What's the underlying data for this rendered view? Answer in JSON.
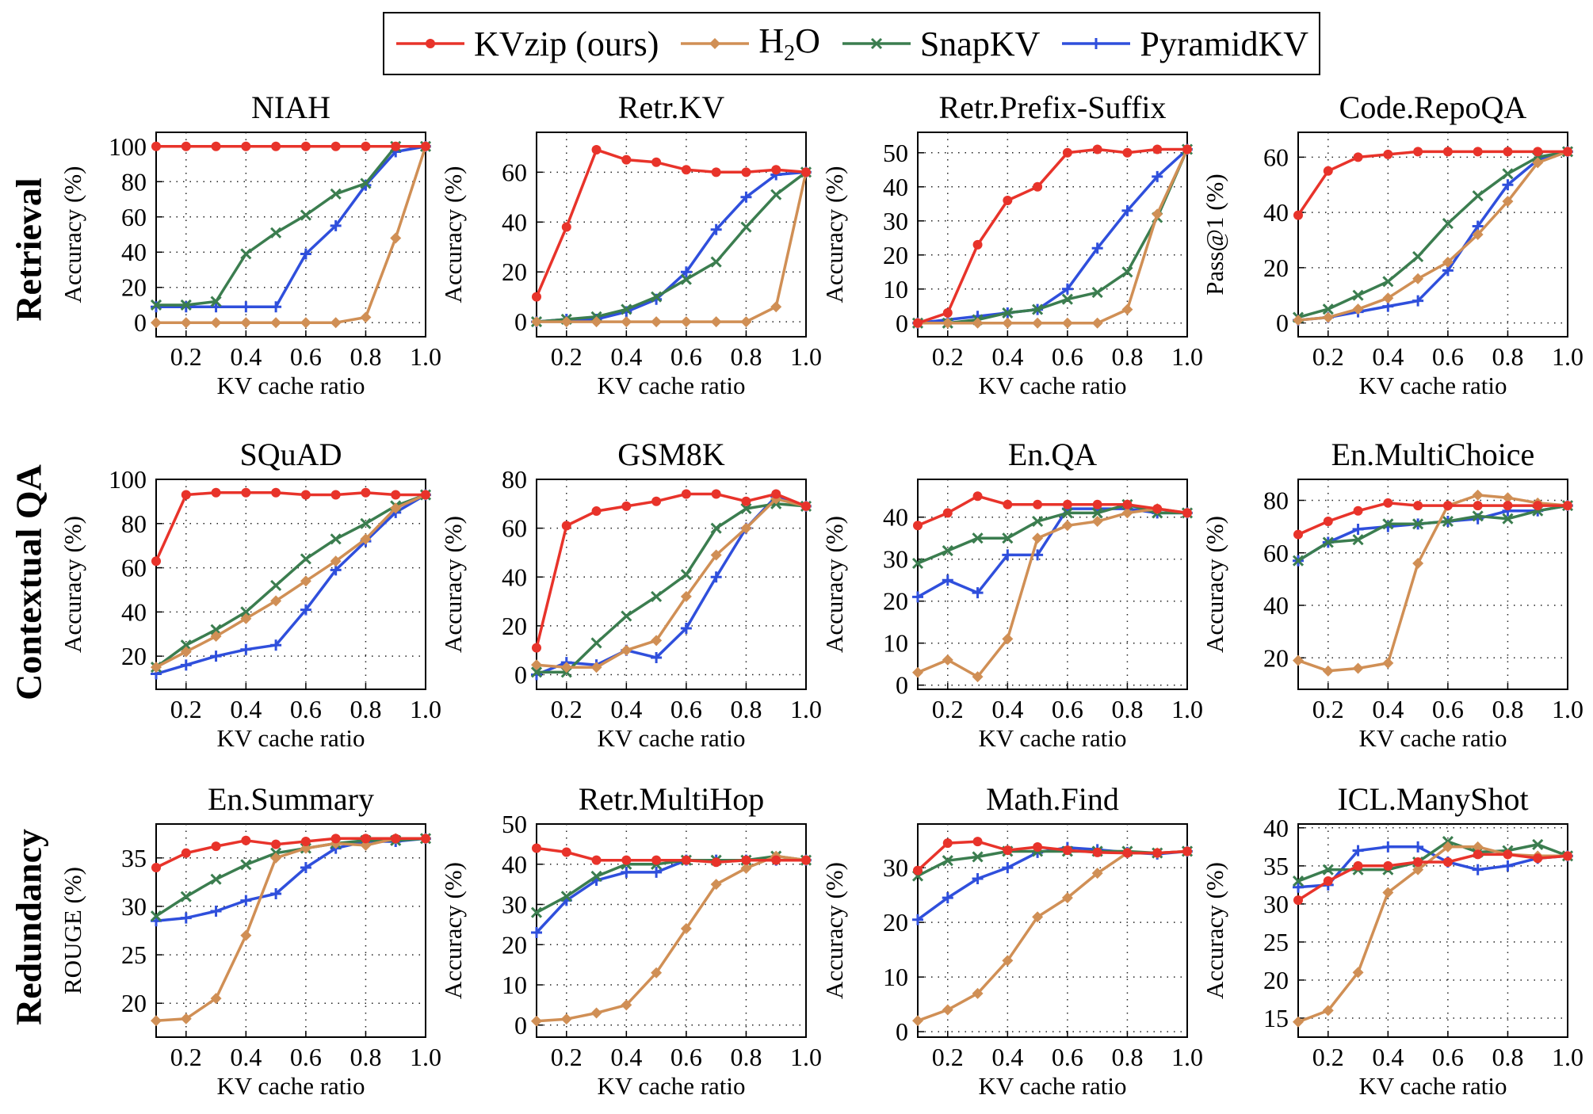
{
  "legend": [
    {
      "name": "KVzip (ours)",
      "color": "#e8332a",
      "marker": "circle"
    },
    {
      "name": "H2O",
      "color": "#d08f55",
      "marker": "diamond"
    },
    {
      "name": "SnapKV",
      "color": "#3b7d4f",
      "marker": "x"
    },
    {
      "name": "PyramidKV",
      "color": "#2f4fdc",
      "marker": "plus"
    }
  ],
  "row_labels": [
    "Retrieval",
    "Contextual QA",
    "Redundancy"
  ],
  "chart_data": [
    {
      "type": "line",
      "title": "NIAH",
      "xlabel": "KV cache ratio",
      "ylabel": "Accuracy (%)",
      "x": [
        0.1,
        0.2,
        0.3,
        0.4,
        0.5,
        0.6,
        0.7,
        0.8,
        0.9,
        1.0
      ],
      "ylim": [
        -8,
        108
      ],
      "yticks": [
        0,
        20,
        40,
        60,
        80,
        100
      ],
      "series": [
        {
          "name": "KVzip (ours)",
          "values": [
            100,
            100,
            100,
            100,
            100,
            100,
            100,
            100,
            100,
            100
          ]
        },
        {
          "name": "H2O",
          "values": [
            0,
            0,
            0,
            0,
            0,
            0,
            0,
            3,
            48,
            100
          ]
        },
        {
          "name": "SnapKV",
          "values": [
            10,
            10,
            12,
            39,
            51,
            61,
            73,
            79,
            100,
            100
          ]
        },
        {
          "name": "PyramidKV",
          "values": [
            9,
            9,
            9,
            9,
            9,
            39,
            55,
            78,
            97,
            100
          ]
        }
      ]
    },
    {
      "type": "line",
      "title": "Retr.KV",
      "xlabel": "KV cache ratio",
      "ylabel": "Accuracy (%)",
      "x": [
        0.1,
        0.2,
        0.3,
        0.4,
        0.5,
        0.6,
        0.7,
        0.8,
        0.9,
        1.0
      ],
      "ylim": [
        -6,
        76
      ],
      "yticks": [
        0,
        20,
        40,
        60
      ],
      "series": [
        {
          "name": "KVzip (ours)",
          "values": [
            10,
            38,
            69,
            65,
            64,
            61,
            60,
            60,
            61,
            60
          ]
        },
        {
          "name": "H2O",
          "values": [
            0,
            0,
            0,
            0,
            0,
            0,
            0,
            0,
            6,
            60
          ]
        },
        {
          "name": "SnapKV",
          "values": [
            0,
            1,
            2,
            5,
            10,
            17,
            24,
            38,
            51,
            60
          ]
        },
        {
          "name": "PyramidKV",
          "values": [
            0,
            1,
            1,
            4,
            9,
            20,
            37,
            50,
            59,
            60
          ]
        }
      ]
    },
    {
      "type": "line",
      "title": "Retr.Prefix-Suffix",
      "xlabel": "KV cache ratio",
      "ylabel": "Accuracy (%)",
      "x": [
        0.1,
        0.2,
        0.3,
        0.4,
        0.5,
        0.6,
        0.7,
        0.8,
        0.9,
        1.0
      ],
      "ylim": [
        -4,
        56
      ],
      "yticks": [
        0,
        10,
        20,
        30,
        40,
        50
      ],
      "series": [
        {
          "name": "KVzip (ours)",
          "values": [
            0,
            3,
            23,
            36,
            40,
            50,
            51,
            50,
            51,
            51
          ]
        },
        {
          "name": "H2O",
          "values": [
            0,
            0,
            0,
            0,
            0,
            0,
            0,
            4,
            32,
            51
          ]
        },
        {
          "name": "SnapKV",
          "values": [
            0,
            0,
            1,
            3,
            4,
            7,
            9,
            15,
            31,
            51
          ]
        },
        {
          "name": "PyramidKV",
          "values": [
            0,
            1,
            2,
            3,
            4,
            10,
            22,
            33,
            43,
            51
          ]
        }
      ]
    },
    {
      "type": "line",
      "title": "Code.RepoQA",
      "xlabel": "KV cache ratio",
      "ylabel": "Pass@1 (%)",
      "x": [
        0.1,
        0.2,
        0.3,
        0.4,
        0.5,
        0.6,
        0.7,
        0.8,
        0.9,
        1.0
      ],
      "ylim": [
        -5,
        69
      ],
      "yticks": [
        0,
        20,
        40,
        60
      ],
      "series": [
        {
          "name": "KVzip (ours)",
          "values": [
            39,
            55,
            60,
            61,
            62,
            62,
            62,
            62,
            62,
            62
          ]
        },
        {
          "name": "H2O",
          "values": [
            1,
            2,
            5,
            9,
            16,
            22,
            32,
            44,
            58,
            62
          ]
        },
        {
          "name": "SnapKV",
          "values": [
            2,
            5,
            10,
            15,
            24,
            36,
            46,
            54,
            60,
            62
          ]
        },
        {
          "name": "PyramidKV",
          "values": [
            1,
            2,
            4,
            6,
            8,
            19,
            35,
            50,
            59,
            62
          ]
        }
      ]
    },
    {
      "type": "line",
      "title": "SQuAD",
      "xlabel": "KV cache ratio",
      "ylabel": "Accuracy (%)",
      "x": [
        0.1,
        0.2,
        0.3,
        0.4,
        0.5,
        0.6,
        0.7,
        0.8,
        0.9,
        1.0
      ],
      "ylim": [
        5,
        100
      ],
      "yticks": [
        20,
        40,
        60,
        80,
        100
      ],
      "series": [
        {
          "name": "KVzip (ours)",
          "values": [
            63,
            93,
            94,
            94,
            94,
            93,
            93,
            94,
            93,
            93
          ]
        },
        {
          "name": "H2O",
          "values": [
            15,
            22,
            29,
            37,
            45,
            54,
            63,
            73,
            87,
            93
          ]
        },
        {
          "name": "SnapKV",
          "values": [
            15,
            25,
            32,
            40,
            52,
            64,
            73,
            80,
            88,
            93
          ]
        },
        {
          "name": "PyramidKV",
          "values": [
            12,
            16,
            20,
            23,
            25,
            41,
            59,
            72,
            85,
            93
          ]
        }
      ]
    },
    {
      "type": "line",
      "title": "GSM8K",
      "xlabel": "KV cache ratio",
      "ylabel": "Accuracy (%)",
      "x": [
        0.1,
        0.2,
        0.3,
        0.4,
        0.5,
        0.6,
        0.7,
        0.8,
        0.9,
        1.0
      ],
      "ylim": [
        -6,
        80
      ],
      "yticks": [
        0,
        20,
        40,
        60,
        80
      ],
      "series": [
        {
          "name": "KVzip (ours)",
          "values": [
            11,
            61,
            67,
            69,
            71,
            74,
            74,
            71,
            74,
            69
          ]
        },
        {
          "name": "H2O",
          "values": [
            4,
            3,
            3,
            10,
            14,
            32,
            49,
            60,
            72,
            69
          ]
        },
        {
          "name": "SnapKV",
          "values": [
            1,
            1,
            13,
            24,
            32,
            41,
            60,
            68,
            70,
            69
          ]
        },
        {
          "name": "PyramidKV",
          "values": [
            0,
            5,
            4,
            10,
            7,
            19,
            40,
            60,
            73,
            69
          ]
        }
      ]
    },
    {
      "type": "line",
      "title": "En.QA",
      "xlabel": "KV cache ratio",
      "ylabel": "Accuracy (%)",
      "x": [
        0.1,
        0.2,
        0.3,
        0.4,
        0.5,
        0.6,
        0.7,
        0.8,
        0.9,
        1.0
      ],
      "ylim": [
        -1,
        49
      ],
      "yticks": [
        0,
        10,
        20,
        30,
        40
      ],
      "series": [
        {
          "name": "KVzip (ours)",
          "values": [
            38,
            41,
            45,
            43,
            43,
            43,
            43,
            43,
            42,
            41
          ]
        },
        {
          "name": "H2O",
          "values": [
            3,
            6,
            2,
            11,
            35,
            38,
            39,
            41,
            42,
            41
          ]
        },
        {
          "name": "SnapKV",
          "values": [
            29,
            32,
            35,
            35,
            39,
            41,
            41,
            43,
            41,
            41
          ]
        },
        {
          "name": "PyramidKV",
          "values": [
            21,
            25,
            22,
            31,
            31,
            42,
            42,
            42,
            41,
            41
          ]
        }
      ]
    },
    {
      "type": "line",
      "title": "En.MultiChoice",
      "xlabel": "KV cache ratio",
      "ylabel": "Accuracy (%)",
      "x": [
        0.1,
        0.2,
        0.3,
        0.4,
        0.5,
        0.6,
        0.7,
        0.8,
        0.9,
        1.0
      ],
      "ylim": [
        8,
        88
      ],
      "yticks": [
        20,
        40,
        60,
        80
      ],
      "series": [
        {
          "name": "KVzip (ours)",
          "values": [
            67,
            72,
            76,
            79,
            78,
            78,
            78,
            78,
            78,
            78
          ]
        },
        {
          "name": "H2O",
          "values": [
            19,
            15,
            16,
            18,
            56,
            78,
            82,
            81,
            79,
            78
          ]
        },
        {
          "name": "SnapKV",
          "values": [
            57,
            64,
            65,
            71,
            71,
            72,
            74,
            73,
            76,
            78
          ]
        },
        {
          "name": "PyramidKV",
          "values": [
            57,
            64,
            69,
            70,
            71,
            72,
            73,
            76,
            76,
            78
          ]
        }
      ]
    },
    {
      "type": "line",
      "title": "En.Summary",
      "xlabel": "KV cache ratio",
      "ylabel": "ROUGE (%)",
      "x": [
        0.1,
        0.2,
        0.3,
        0.4,
        0.5,
        0.6,
        0.7,
        0.8,
        0.9,
        1.0
      ],
      "ylim": [
        16.5,
        38.5
      ],
      "yticks": [
        20,
        25,
        30,
        35
      ],
      "series": [
        {
          "name": "KVzip (ours)",
          "values": [
            34,
            35.5,
            36.2,
            36.8,
            36.4,
            36.7,
            37,
            37,
            37,
            37
          ]
        },
        {
          "name": "H2O",
          "values": [
            18.2,
            18.4,
            20.5,
            27,
            35,
            36,
            36.5,
            36.3,
            37,
            37
          ]
        },
        {
          "name": "SnapKV",
          "values": [
            29,
            31,
            32.8,
            34.3,
            35.5,
            36,
            36.5,
            36.8,
            36.8,
            37
          ]
        },
        {
          "name": "PyramidKV",
          "values": [
            28.5,
            28.8,
            29.5,
            30.6,
            31.3,
            34,
            36,
            36.7,
            36.7,
            37
          ]
        }
      ]
    },
    {
      "type": "line",
      "title": "Retr.MultiHop",
      "xlabel": "KV cache ratio",
      "ylabel": "Accuracy (%)",
      "x": [
        0.1,
        0.2,
        0.3,
        0.4,
        0.5,
        0.6,
        0.7,
        0.8,
        0.9,
        1.0
      ],
      "ylim": [
        -3,
        50
      ],
      "yticks": [
        0,
        10,
        20,
        30,
        40,
        50
      ],
      "series": [
        {
          "name": "KVzip (ours)",
          "values": [
            44,
            43,
            41,
            41,
            41,
            41,
            40.5,
            41,
            41,
            41
          ]
        },
        {
          "name": "H2O",
          "values": [
            1,
            1.5,
            3,
            5,
            13,
            24,
            35,
            39,
            42,
            41
          ]
        },
        {
          "name": "SnapKV",
          "values": [
            28,
            32,
            37,
            40,
            40,
            41,
            41,
            41,
            42,
            41
          ]
        },
        {
          "name": "PyramidKV",
          "values": [
            23,
            31,
            36,
            38,
            38,
            41,
            41,
            41,
            41,
            41
          ]
        }
      ]
    },
    {
      "type": "line",
      "title": "Math.Find",
      "xlabel": "KV cache ratio",
      "ylabel": "Accuracy (%)",
      "x": [
        0.1,
        0.2,
        0.3,
        0.4,
        0.5,
        0.6,
        0.7,
        0.8,
        0.9,
        1.0
      ],
      "ylim": [
        -1,
        38
      ],
      "yticks": [
        0,
        10,
        20,
        30
      ],
      "series": [
        {
          "name": "KVzip (ours)",
          "values": [
            29.5,
            34.5,
            34.8,
            33.2,
            33.8,
            33.2,
            32.8,
            32.7,
            32.7,
            33
          ]
        },
        {
          "name": "H2O",
          "values": [
            2,
            4,
            7,
            13,
            21,
            24.5,
            29,
            32.7,
            32.7,
            33
          ]
        },
        {
          "name": "SnapKV",
          "values": [
            28.5,
            31.3,
            32,
            33,
            33,
            33,
            33,
            33,
            32.7,
            33
          ]
        },
        {
          "name": "PyramidKV",
          "values": [
            20.5,
            24.5,
            28,
            30,
            32.8,
            33.7,
            33.3,
            32.8,
            32.5,
            33
          ]
        }
      ]
    },
    {
      "type": "line",
      "title": "ICL.ManyShot",
      "xlabel": "KV cache ratio",
      "ylabel": "Accuracy (%)",
      "x": [
        0.1,
        0.2,
        0.3,
        0.4,
        0.5,
        0.6,
        0.7,
        0.8,
        0.9,
        1.0
      ],
      "ylim": [
        12.5,
        40.5
      ],
      "yticks": [
        15,
        20,
        25,
        30,
        35,
        40
      ],
      "series": [
        {
          "name": "KVzip (ours)",
          "values": [
            30.5,
            33,
            35,
            35,
            35.5,
            35.5,
            36.5,
            36.5,
            36,
            36.3
          ]
        },
        {
          "name": "H2O",
          "values": [
            14.5,
            16,
            21,
            31.5,
            34.5,
            37.5,
            37.5,
            36.5,
            36.3,
            36.3
          ]
        },
        {
          "name": "SnapKV",
          "values": [
            33,
            34.5,
            34.5,
            34.5,
            35.5,
            38.2,
            36.8,
            37,
            37.8,
            36.3
          ]
        },
        {
          "name": "PyramidKV",
          "values": [
            32.2,
            32.5,
            37,
            37.5,
            37.5,
            35.5,
            34.5,
            35,
            36,
            36.3
          ]
        }
      ]
    }
  ]
}
